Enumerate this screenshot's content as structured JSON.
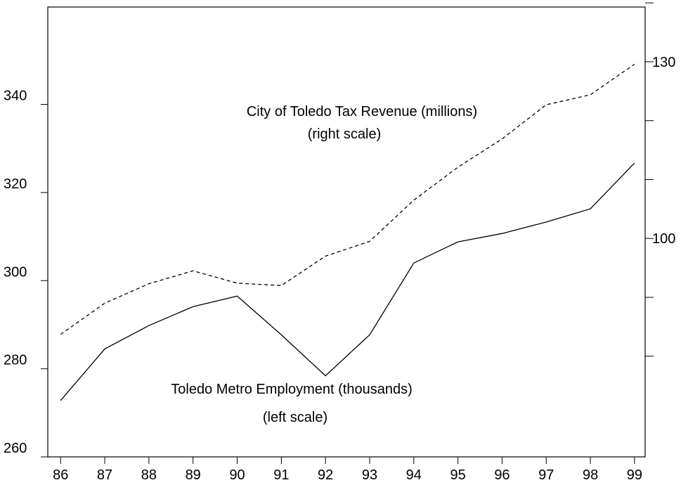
{
  "chart_data": {
    "type": "line",
    "x": [
      86,
      87,
      88,
      89,
      90,
      91,
      92,
      93,
      94,
      95,
      96,
      97,
      98,
      99
    ],
    "series": [
      {
        "name": "Toledo Metro Employment (thousands)",
        "color": "#000000",
        "dash": false,
        "values": [
          272.8,
          284.5,
          289.8,
          294.1,
          296.5,
          287.7,
          278.4,
          287.7,
          304,
          308.8,
          310.7,
          313.3,
          316.3,
          326.7
        ]
      },
      {
        "name": "City of Toledo Tax Revenue (millions)",
        "color": "#000000",
        "dash": true,
        "axis": "y2",
        "values": [
          83.7,
          89.0,
          92.3,
          94.5,
          92.4,
          92.0,
          97.0,
          99.5,
          106.5,
          112.1,
          116.9,
          122.7,
          124.4,
          129.6
        ]
      }
    ],
    "annotations": [
      "City of Toledo Tax Revenue (millions)",
      "(right scale)",
      "Toledo Metro Employment (thousands)",
      "(left scale)"
    ],
    "xlim": [
      85.71,
      99.24
    ],
    "xticks": [
      86,
      87,
      88,
      89,
      90,
      91,
      92,
      93,
      94,
      95,
      96,
      97,
      98,
      99
    ],
    "ylim": [
      260,
      362.1
    ],
    "yticks": [
      260,
      280,
      300,
      320,
      340
    ],
    "y2lim": [
      62.9,
      139.3
    ],
    "y2ticks": [
      100,
      130
    ],
    "y2minor_ticks": [
      80,
      90,
      110,
      120,
      140
    ]
  }
}
